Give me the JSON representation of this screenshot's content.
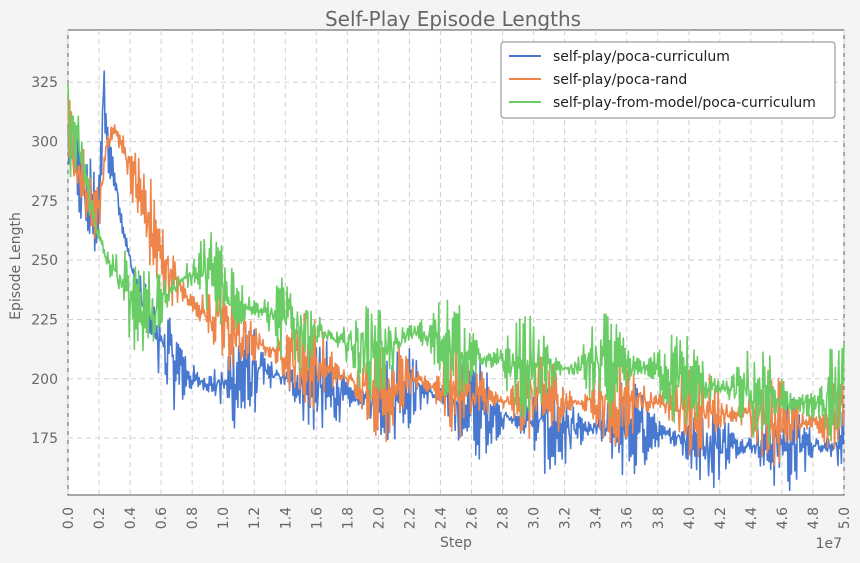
{
  "chart_data": {
    "type": "line",
    "title": "Self-Play Episode Lengths",
    "xlabel": "Step",
    "ylabel": "Episode Length",
    "x_offset_label": "1e7",
    "xlim": [
      0.0,
      5.0
    ],
    "ylim": [
      151,
      347
    ],
    "x_ticks": [
      "0.0",
      "0.2",
      "0.4",
      "0.6",
      "0.8",
      "1.0",
      "1.2",
      "1.4",
      "1.6",
      "1.8",
      "2.0",
      "2.2",
      "2.4",
      "2.6",
      "2.8",
      "3.0",
      "3.2",
      "3.4",
      "3.6",
      "3.8",
      "4.0",
      "4.2",
      "4.4",
      "4.6",
      "4.8",
      "5.0"
    ],
    "y_ticks": [
      "175",
      "200",
      "225",
      "250",
      "275",
      "300",
      "325"
    ],
    "grid": true,
    "legend_position": "top-right",
    "series": [
      {
        "name": "self-play/poca-curriculum",
        "color": "#4878d0",
        "x": [
          0.0,
          0.05,
          0.1,
          0.15,
          0.2,
          0.23,
          0.25,
          0.3,
          0.35,
          0.4,
          0.45,
          0.5,
          0.55,
          0.6,
          0.7,
          0.8,
          0.9,
          1.0,
          1.1,
          1.2,
          1.3,
          1.4,
          1.5,
          1.6,
          1.7,
          1.8,
          1.9,
          2.0,
          2.1,
          2.2,
          2.3,
          2.4,
          2.5,
          2.6,
          2.7,
          2.8,
          2.9,
          3.0,
          3.1,
          3.2,
          3.3,
          3.4,
          3.5,
          3.6,
          3.7,
          3.8,
          3.9,
          4.0,
          4.1,
          4.2,
          4.3,
          4.4,
          4.5,
          4.6,
          4.7,
          4.8,
          4.9,
          5.0
        ],
        "values": [
          300,
          292,
          278,
          272,
          268,
          322,
          300,
          285,
          265,
          250,
          238,
          230,
          222,
          215,
          205,
          200,
          198,
          197,
          200,
          203,
          202,
          200,
          197,
          197,
          195,
          193,
          191,
          190,
          193,
          197,
          195,
          192,
          190,
          188,
          186,
          184,
          182,
          182,
          180,
          179,
          178,
          179,
          180,
          179,
          178,
          177,
          176,
          175,
          174,
          173,
          172,
          172,
          173,
          174,
          172,
          172,
          172,
          173
        ]
      },
      {
        "name": "self-play/poca-rand",
        "color": "#ee854a",
        "x": [
          0.0,
          0.05,
          0.1,
          0.15,
          0.2,
          0.25,
          0.3,
          0.35,
          0.4,
          0.45,
          0.5,
          0.55,
          0.6,
          0.7,
          0.8,
          0.9,
          1.0,
          1.1,
          1.2,
          1.3,
          1.4,
          1.5,
          1.6,
          1.7,
          1.8,
          1.9,
          2.0,
          2.1,
          2.2,
          2.3,
          2.4,
          2.5,
          2.6,
          2.7,
          2.8,
          2.9,
          3.0,
          3.1,
          3.2,
          3.3,
          3.4,
          3.5,
          3.6,
          3.7,
          3.8,
          3.9,
          4.0,
          4.1,
          4.2,
          4.3,
          4.4,
          4.5,
          4.6,
          4.7,
          4.8,
          4.9,
          5.0
        ],
        "values": [
          300,
          292,
          278,
          272,
          270,
          300,
          305,
          298,
          290,
          280,
          270,
          260,
          250,
          240,
          232,
          227,
          223,
          218,
          215,
          212,
          210,
          208,
          206,
          203,
          200,
          197,
          195,
          196,
          200,
          198,
          196,
          195,
          193,
          192,
          190,
          191,
          192,
          192,
          190,
          190,
          190,
          190,
          192,
          191,
          190,
          189,
          188,
          187,
          186,
          185,
          184,
          183,
          182,
          182,
          182,
          182,
          185
        ]
      },
      {
        "name": "self-play-from-model/poca-curriculum",
        "color": "#6acc64",
        "x": [
          0.0,
          0.05,
          0.1,
          0.15,
          0.2,
          0.25,
          0.3,
          0.35,
          0.4,
          0.45,
          0.5,
          0.55,
          0.6,
          0.7,
          0.8,
          0.9,
          1.0,
          1.1,
          1.2,
          1.3,
          1.4,
          1.5,
          1.6,
          1.7,
          1.8,
          1.9,
          2.0,
          2.1,
          2.2,
          2.3,
          2.4,
          2.5,
          2.6,
          2.7,
          2.8,
          2.9,
          3.0,
          3.1,
          3.2,
          3.3,
          3.4,
          3.5,
          3.6,
          3.7,
          3.8,
          3.9,
          4.0,
          4.1,
          4.2,
          4.3,
          4.4,
          4.5,
          4.6,
          4.7,
          4.8,
          4.9,
          5.0
        ],
        "values": [
          305,
          300,
          290,
          272,
          260,
          250,
          245,
          240,
          235,
          232,
          230,
          228,
          232,
          240,
          245,
          245,
          238,
          232,
          230,
          227,
          225,
          222,
          220,
          217,
          215,
          213,
          212,
          212,
          220,
          218,
          215,
          212,
          210,
          208,
          207,
          205,
          205,
          204,
          204,
          205,
          206,
          205,
          204,
          205,
          204,
          200,
          198,
          197,
          196,
          195,
          194,
          192,
          190,
          189,
          190,
          192,
          195
        ]
      }
    ]
  }
}
